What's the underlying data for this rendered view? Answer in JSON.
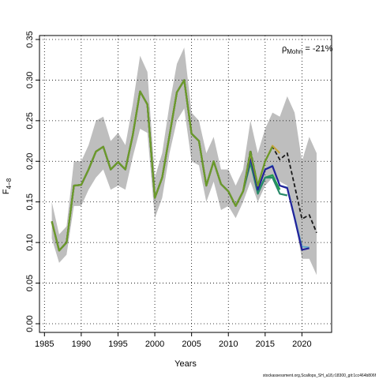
{
  "chart_data": {
    "type": "line",
    "xlabel": "Years",
    "ylabel_main": "F",
    "ylabel_sub": "4−8",
    "xlim": [
      1985,
      2023
    ],
    "ylim": [
      0,
      0.35
    ],
    "xticks": [
      1985,
      1990,
      1995,
      2000,
      2005,
      2010,
      2015,
      2020
    ],
    "yticks": [
      0.0,
      0.05,
      0.1,
      0.15,
      0.2,
      0.25,
      0.3,
      0.35
    ],
    "ytick_labels": [
      "0.00",
      "0.05",
      "0.10",
      "0.15",
      "0.20",
      "0.25",
      "0.30",
      "0.35"
    ],
    "grid": true,
    "annotation": {
      "prefix": "ρ",
      "sub": "Mohn",
      "value": " = -21%"
    },
    "footer": "stockassessment.org,Scallops_SH_a18,r18300_git:1cc464b806f",
    "colors": {
      "band": "#bebebe",
      "final": "#1a1a1a",
      "peel1": "#c8a43c",
      "peel2": "#22229a",
      "peel3": "#2a8a6a",
      "peel4": "#22a050",
      "peel5": "#5aa8c8",
      "common": "#6a9a2a"
    },
    "x": [
      1986,
      1987,
      1988,
      1989,
      1990,
      1991,
      1992,
      1993,
      1994,
      1995,
      1996,
      1997,
      1998,
      1999,
      2000,
      2001,
      2002,
      2003,
      2004,
      2005,
      2006,
      2007,
      2008,
      2009,
      2010,
      2011,
      2012,
      2013,
      2014,
      2015,
      2016,
      2017,
      2018,
      2019,
      2020,
      2021,
      2022
    ],
    "band_upper": [
      0.15,
      0.11,
      0.12,
      0.2,
      0.2,
      0.22,
      0.25,
      0.255,
      0.225,
      0.235,
      0.22,
      0.27,
      0.33,
      0.31,
      0.18,
      0.21,
      0.27,
      0.32,
      0.34,
      0.26,
      0.25,
      0.21,
      0.23,
      0.19,
      0.19,
      0.17,
      0.19,
      0.25,
      0.21,
      0.24,
      0.26,
      0.255,
      0.28,
      0.26,
      0.2,
      0.23,
      0.21
    ],
    "band_lower": [
      0.105,
      0.075,
      0.085,
      0.145,
      0.145,
      0.165,
      0.18,
      0.19,
      0.165,
      0.17,
      0.165,
      0.205,
      0.24,
      0.235,
      0.13,
      0.155,
      0.21,
      0.25,
      0.265,
      0.2,
      0.195,
      0.15,
      0.175,
      0.14,
      0.145,
      0.13,
      0.15,
      0.175,
      0.15,
      0.17,
      0.18,
      0.175,
      0.17,
      0.13,
      0.08,
      0.08,
      0.06
    ],
    "series": [
      {
        "values": [
          0.126,
          0.09,
          0.1,
          0.17,
          0.171,
          0.19,
          0.212,
          0.218,
          0.19,
          0.199,
          0.19,
          0.232,
          0.286,
          0.27,
          0.155,
          0.18,
          0.232,
          0.285,
          0.3,
          0.234,
          0.225,
          0.17,
          0.2,
          0.172,
          0.163,
          0.145,
          0.163,
          0.214,
          0.17,
          0.2,
          0.218,
          0.202,
          0.21,
          0.17,
          0.129,
          0.134,
          0.112
        ]
      },
      {
        "values": [
          0.126,
          0.09,
          0.1,
          0.17,
          0.171,
          0.19,
          0.212,
          0.218,
          0.19,
          0.199,
          0.19,
          0.232,
          0.286,
          0.27,
          0.155,
          0.18,
          0.232,
          0.285,
          0.3,
          0.234,
          0.225,
          0.17,
          0.2,
          0.172,
          0.163,
          0.145,
          0.163,
          0.21,
          0.17,
          0.2,
          0.219,
          0.21,
          null,
          null,
          null,
          null,
          null
        ]
      },
      {
        "values": [
          0.126,
          0.09,
          0.1,
          0.17,
          0.171,
          0.19,
          0.212,
          0.218,
          0.19,
          0.199,
          0.19,
          0.232,
          0.286,
          0.27,
          0.155,
          0.18,
          0.232,
          0.285,
          0.3,
          0.234,
          0.225,
          0.17,
          0.2,
          0.172,
          0.163,
          0.145,
          0.163,
          0.205,
          0.165,
          0.19,
          0.194,
          0.17,
          0.167,
          0.13,
          0.091,
          0.093,
          null
        ]
      },
      {
        "values": [
          0.126,
          0.09,
          0.1,
          0.17,
          0.171,
          0.19,
          0.212,
          0.218,
          0.19,
          0.199,
          0.19,
          0.232,
          0.286,
          0.27,
          0.155,
          0.18,
          0.232,
          0.285,
          0.3,
          0.234,
          0.225,
          0.17,
          0.2,
          0.172,
          0.163,
          0.145,
          0.163,
          0.2,
          0.16,
          0.18,
          0.18,
          0.16,
          0.158,
          null,
          null,
          null,
          null
        ]
      },
      {
        "values": [
          0.126,
          0.09,
          0.1,
          0.17,
          0.171,
          0.19,
          0.212,
          0.218,
          0.19,
          0.199,
          0.19,
          0.232,
          0.286,
          0.27,
          0.155,
          0.18,
          0.232,
          0.285,
          0.3,
          0.234,
          0.225,
          0.17,
          0.2,
          0.172,
          0.163,
          0.145,
          0.163,
          0.198,
          0.162,
          0.18,
          0.183,
          0.165,
          null,
          null,
          null,
          null,
          null
        ]
      },
      {
        "values": [
          0.126,
          0.09,
          0.1,
          0.17,
          0.171,
          0.19,
          0.212,
          0.218,
          0.19,
          0.199,
          0.19,
          0.232,
          0.286,
          0.27,
          0.155,
          0.18,
          0.232,
          0.285,
          0.3,
          0.234,
          0.225,
          0.17,
          0.2,
          0.172,
          0.163,
          0.145,
          0.163,
          0.205,
          0.165,
          0.19,
          0.195,
          0.17,
          0.168,
          0.132,
          0.095,
          0.094,
          null
        ]
      },
      {
        "values": [
          0.126,
          0.09,
          0.1,
          0.17,
          0.171,
          0.19,
          0.212,
          0.218,
          0.19,
          0.199,
          0.19,
          0.232,
          0.286,
          0.27,
          0.155,
          0.18,
          0.232,
          0.285,
          0.3,
          0.234,
          0.225,
          0.17,
          0.2,
          0.172,
          0.163,
          0.145,
          0.163,
          0.212,
          0.17,
          0.2,
          0.218,
          null,
          null,
          null,
          null,
          null,
          null
        ]
      }
    ]
  }
}
